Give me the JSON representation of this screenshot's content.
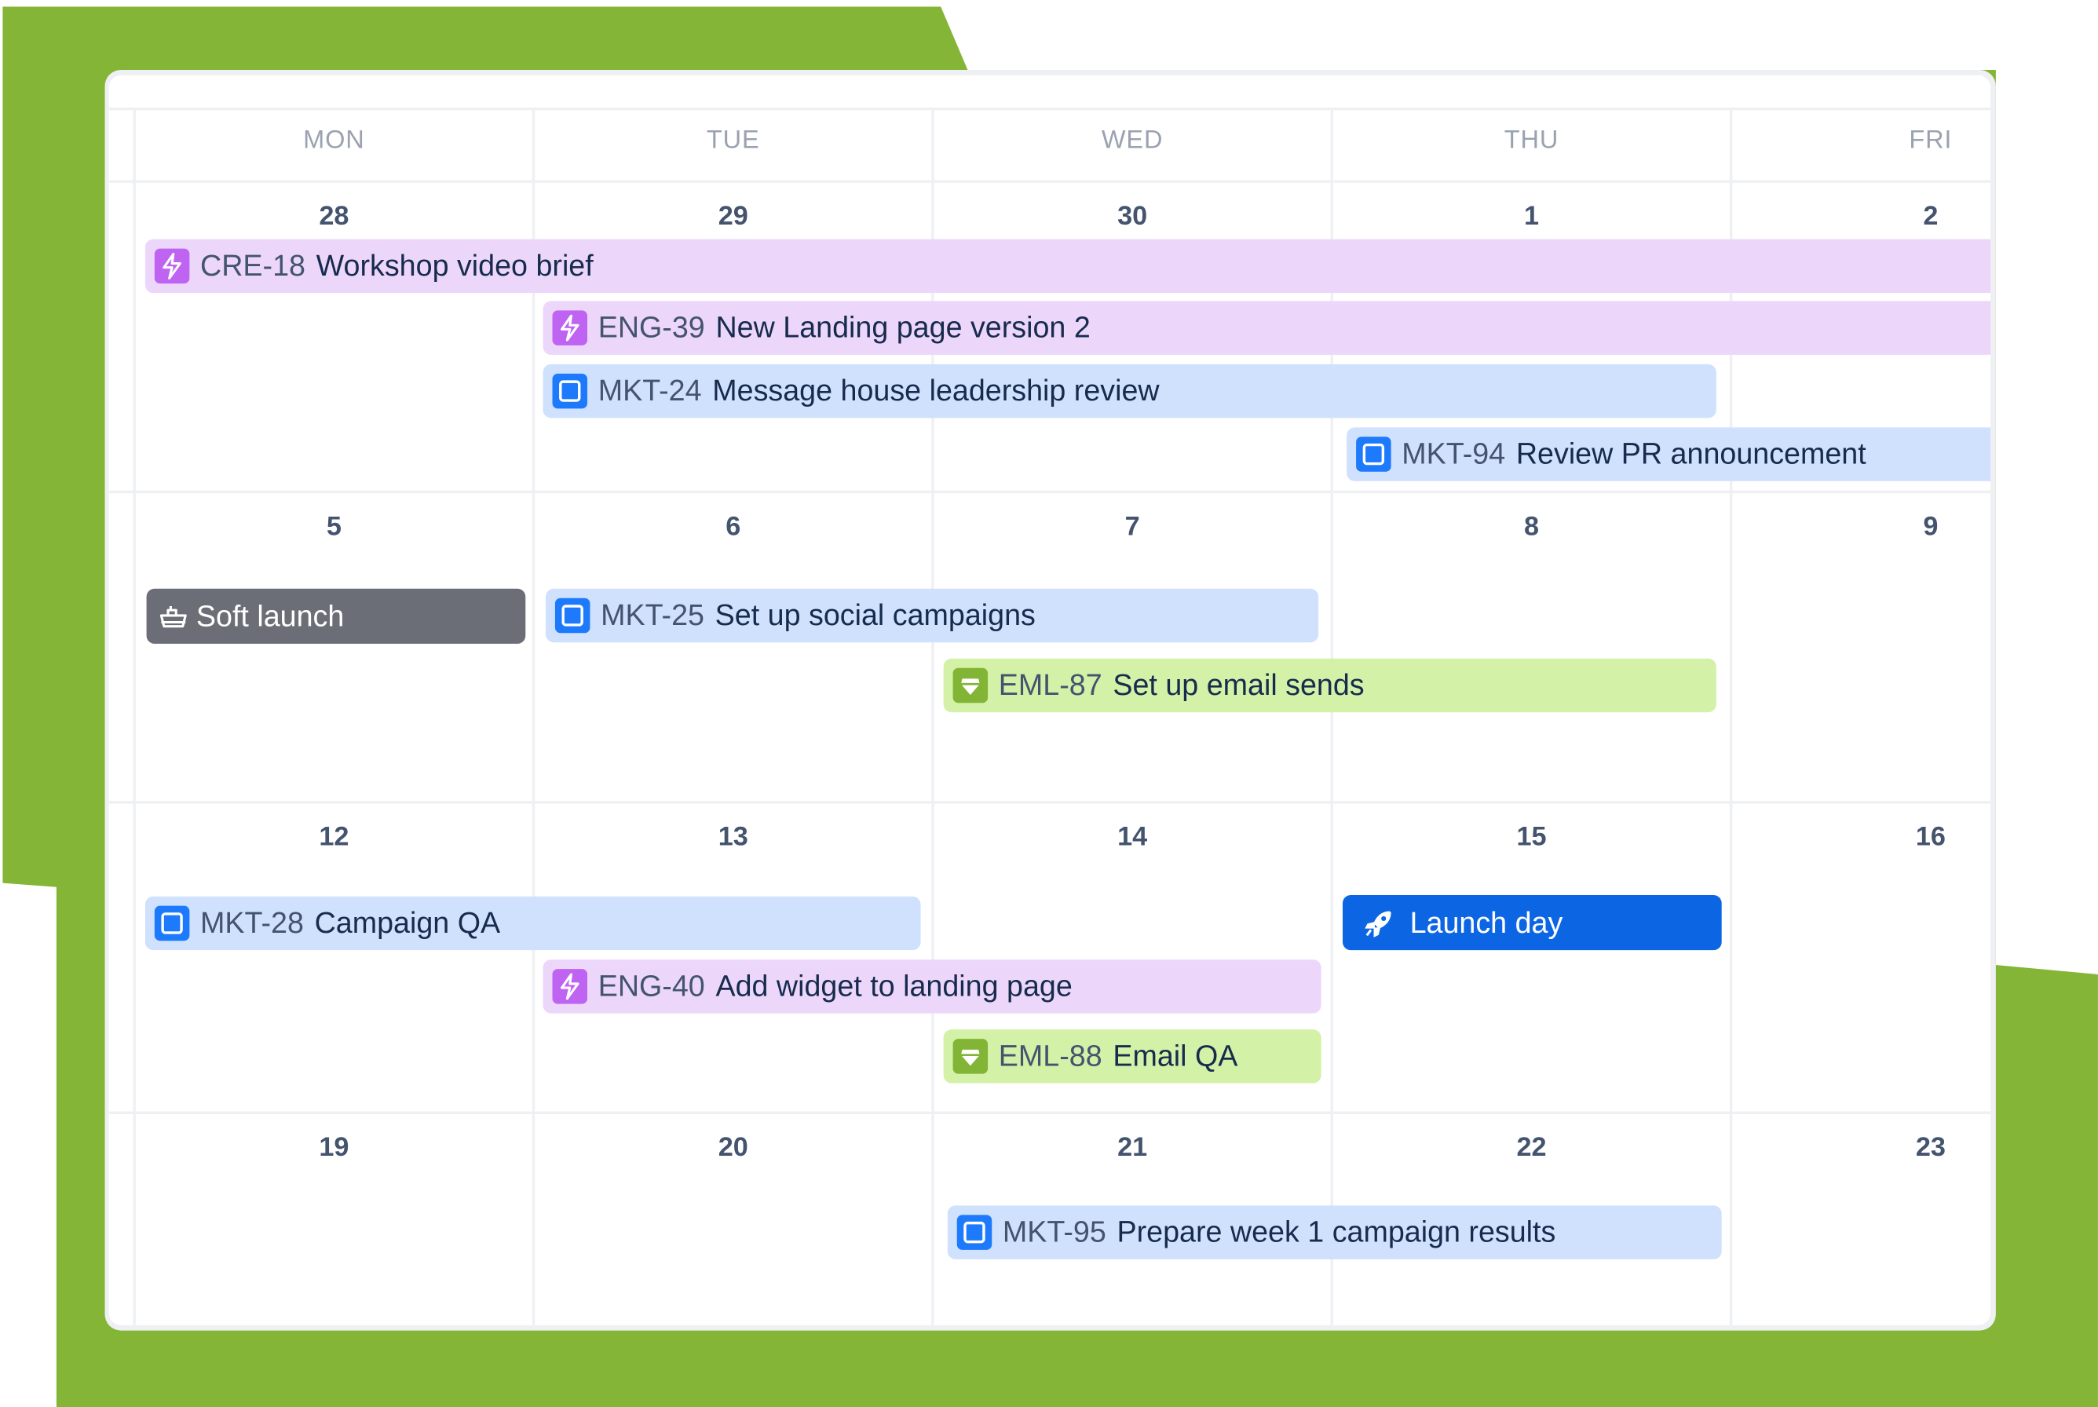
{
  "colors": {
    "background_green": "#84b536",
    "story_purple": "#ecd7fb",
    "task_blue": "#cfe1fd",
    "email_green": "#d3f1a7",
    "milestone_gray": "#6b6e76",
    "launch_blue": "#0c66e4"
  },
  "weekdays": [
    "MON",
    "TUE",
    "WED",
    "THU",
    "FRI"
  ],
  "weeks": [
    {
      "days": [
        "28",
        "29",
        "30",
        "1",
        "2"
      ]
    },
    {
      "days": [
        "5",
        "6",
        "7",
        "8",
        "9"
      ]
    },
    {
      "days": [
        "12",
        "13",
        "14",
        "15",
        "16"
      ]
    },
    {
      "days": [
        "19",
        "20",
        "21",
        "22",
        "23"
      ]
    }
  ],
  "events": [
    {
      "key": "CRE-18",
      "title": "Workshop video brief",
      "icon": "lightning-icon"
    },
    {
      "key": "ENG-39",
      "title": "New Landing page version 2",
      "icon": "lightning-icon"
    },
    {
      "key": "MKT-24",
      "title": "Message house leadership review",
      "icon": "task-square-icon"
    },
    {
      "key": "MKT-94",
      "title": "Review PR announcement",
      "icon": "task-square-icon"
    },
    {
      "key": "",
      "title": "Soft launch",
      "icon": "ship-icon"
    },
    {
      "key": "MKT-25",
      "title": "Set up social campaigns",
      "icon": "task-square-icon"
    },
    {
      "key": "EML-87",
      "title": "Set up email sends",
      "icon": "gem-icon"
    },
    {
      "key": "MKT-28",
      "title": "Campaign QA",
      "icon": "task-square-icon"
    },
    {
      "key": "",
      "title": "Launch day",
      "icon": "rocket-icon"
    },
    {
      "key": "ENG-40",
      "title": "Add widget to landing page",
      "icon": "lightning-icon"
    },
    {
      "key": "EML-88",
      "title": "Email QA",
      "icon": "gem-icon"
    },
    {
      "key": "MKT-95",
      "title": "Prepare week 1 campaign results",
      "icon": "task-square-icon"
    }
  ]
}
